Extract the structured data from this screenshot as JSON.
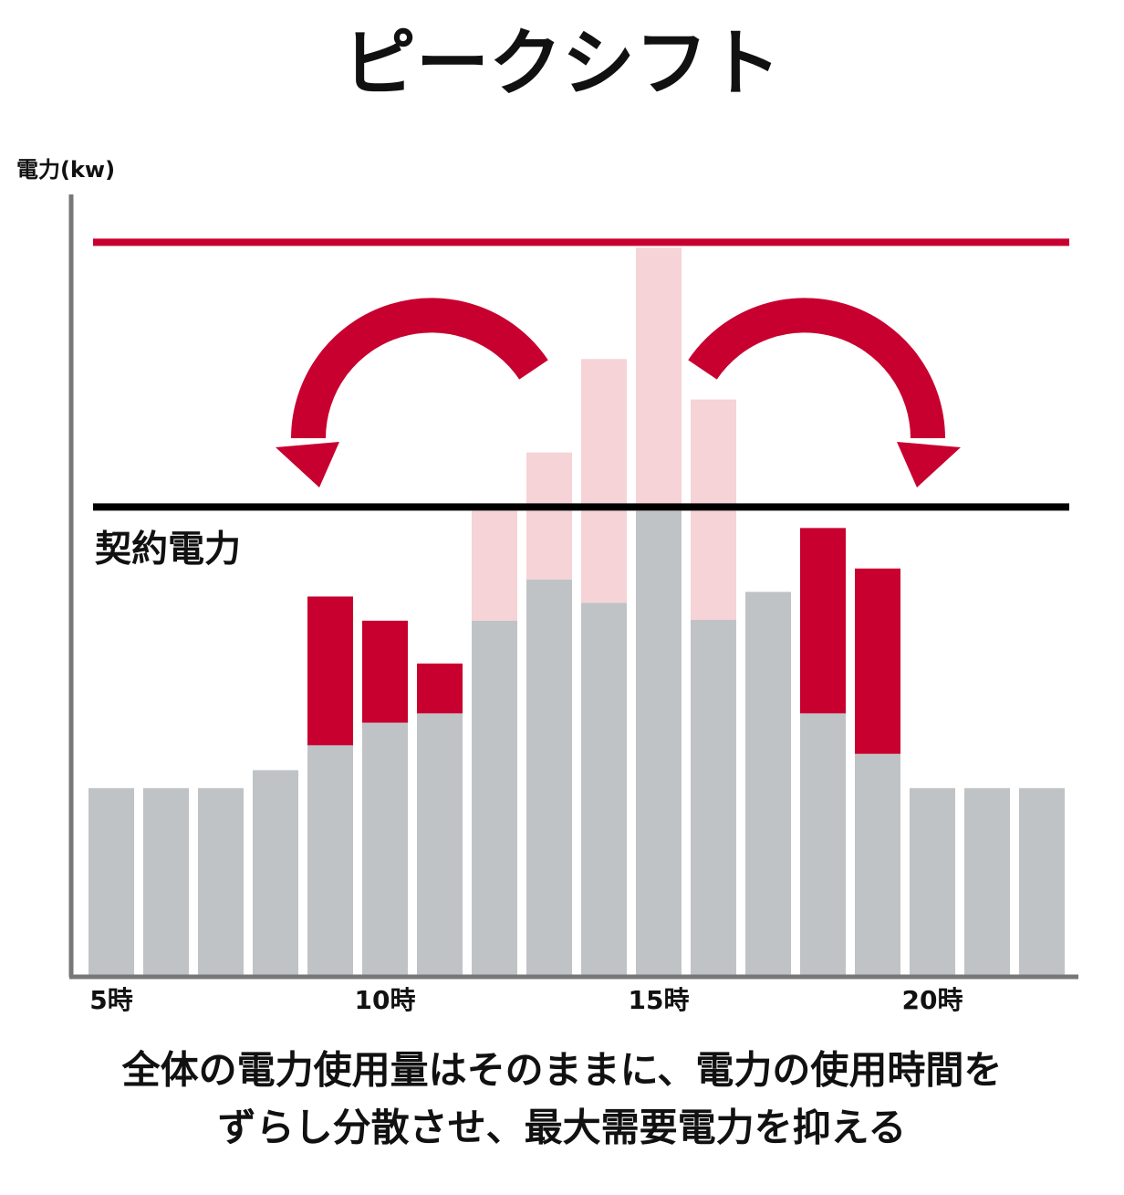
{
  "chart_data": {
    "type": "stacked-bar",
    "title": "ピークシフト",
    "y_label": "電力(kw)",
    "categories": [
      "5時",
      null,
      null,
      null,
      null,
      "10時",
      null,
      null,
      null,
      null,
      "15時",
      null,
      null,
      null,
      null,
      "20時",
      null,
      null
    ],
    "series": [
      {
        "color": "#bfc3c5",
        "values": [
          24.0,
          24.0,
          24.0,
          26.3,
          29.5,
          32.4,
          33.6,
          45.5,
          50.8,
          47.8,
          59.6,
          45.6,
          49.2,
          33.6,
          28.4,
          24.0,
          24.0,
          24.0
        ]
      },
      {
        "color": "#c8002f",
        "values": [
          null,
          null,
          null,
          null,
          19.1,
          13.1,
          6.4,
          null,
          null,
          null,
          null,
          null,
          null,
          23.8,
          23.8,
          null,
          null,
          null
        ]
      },
      {
        "color": "#f6d3d6",
        "values": [
          null,
          null,
          null,
          null,
          null,
          null,
          null,
          14.1,
          16.3,
          31.3,
          33.8,
          28.3,
          null,
          null,
          null,
          null,
          null,
          null
        ]
      }
    ],
    "ylim": [
      0,
      100
    ],
    "reference_lines": [
      {
        "value": 94.1,
        "color": "#c8002f"
      },
      {
        "value": 60.1,
        "color": "#000000",
        "label": "契約電力"
      }
    ],
    "caption": [
      "全体の電力使用量はそのままに、電力の使用時間を",
      "ずらし分散させ、最大需要電力を抑える"
    ]
  }
}
